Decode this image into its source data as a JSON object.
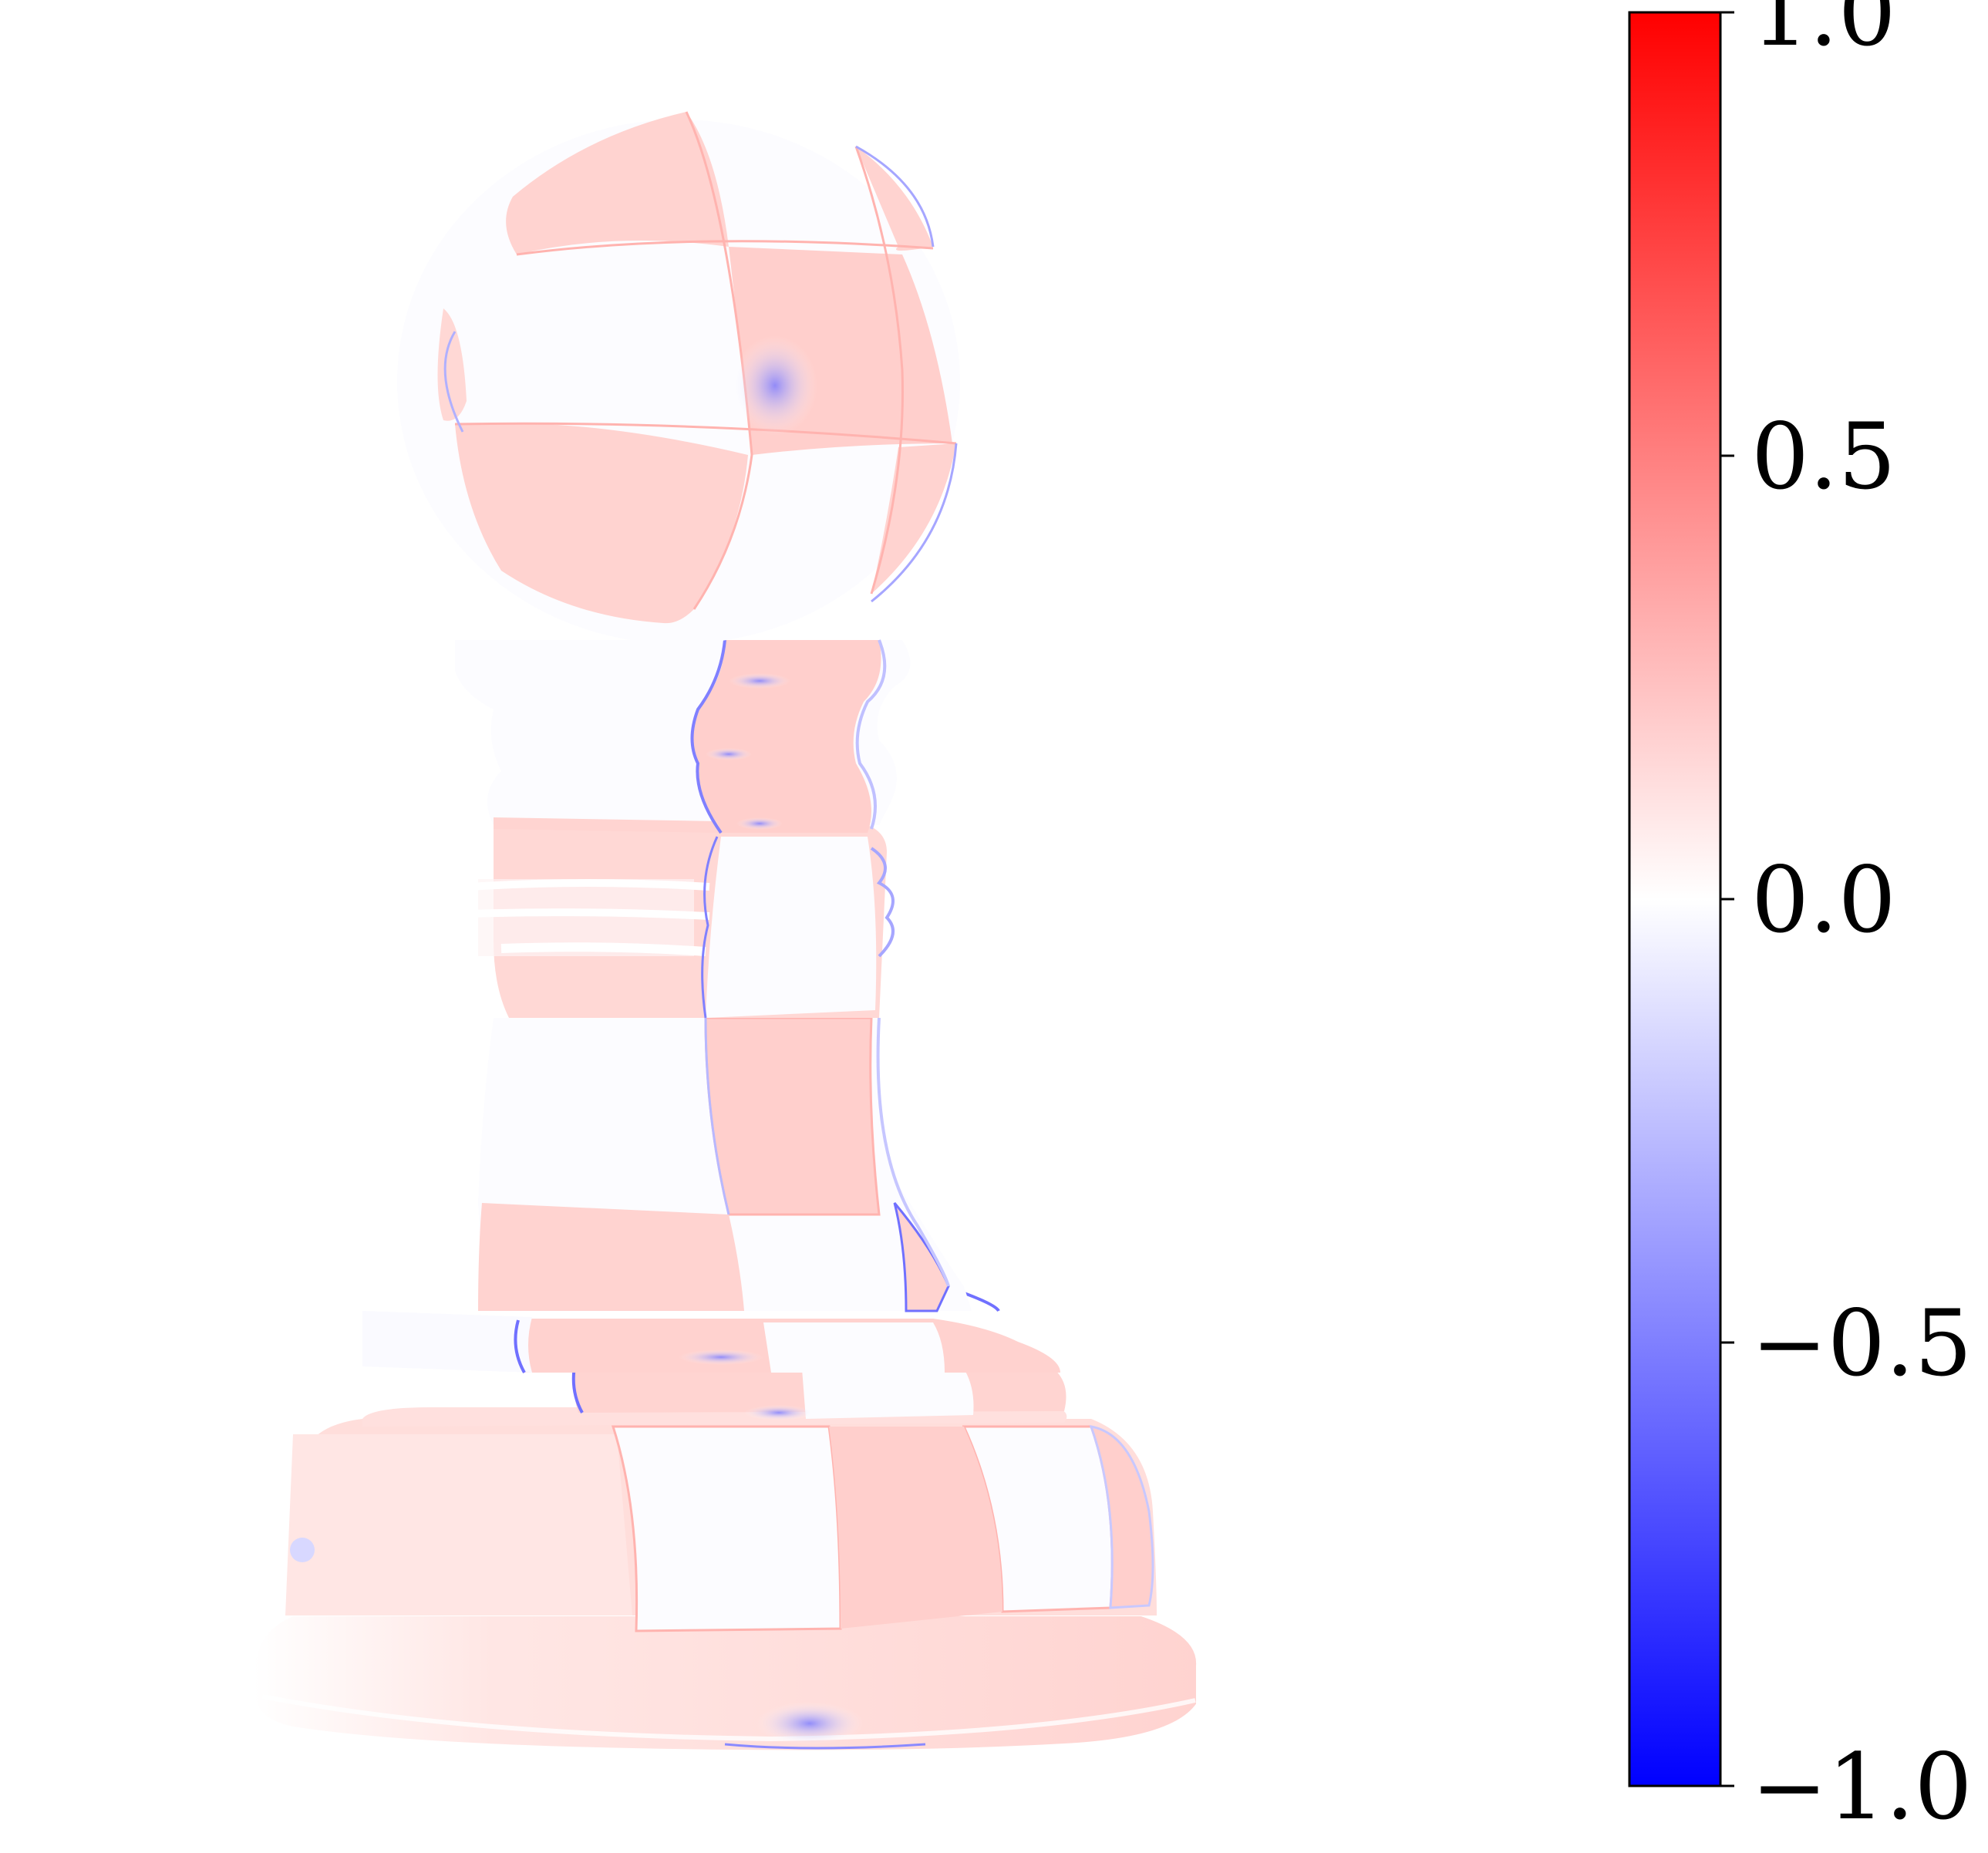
{
  "image": {
    "subject": "chess pawn error heatmap",
    "background_color": "#ffffff"
  },
  "colorbar": {
    "colormap": "bwr",
    "min": -1.0,
    "max": 1.0,
    "colors": {
      "low": "#0000ff",
      "mid": "#ffffff",
      "high": "#ff0000"
    },
    "ticks": [
      {
        "value": 1.0,
        "label": "1.0"
      },
      {
        "value": 0.5,
        "label": "0.5"
      },
      {
        "value": 0.0,
        "label": "0.0"
      },
      {
        "value": -0.5,
        "label": "−0.5"
      },
      {
        "value": -1.0,
        "label": "−1.0"
      }
    ]
  },
  "palette": {
    "pink_strong": "#ffcfcc",
    "pink_light": "#ffe3e1",
    "white_band": "#fbfbff",
    "blue_edge": "#6d6dff"
  }
}
